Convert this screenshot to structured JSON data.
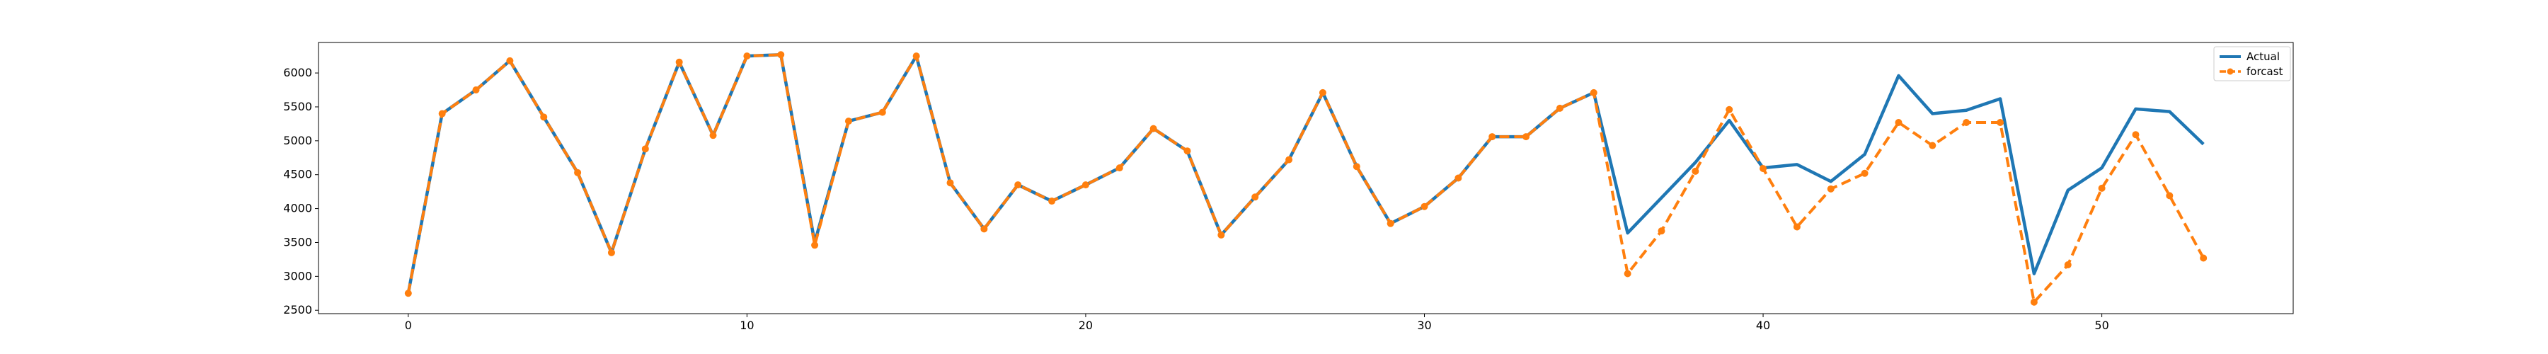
{
  "chart_data": {
    "type": "line",
    "title": "",
    "xlabel": "",
    "ylabel": "",
    "xlim": [
      -2.65,
      55.65
    ],
    "ylim": [
      2450,
      6450
    ],
    "xticks": [
      0,
      10,
      20,
      30,
      40,
      50
    ],
    "yticks": [
      2500,
      3000,
      3500,
      4000,
      4500,
      5000,
      5500,
      6000
    ],
    "grid": false,
    "legend_position": "top-right",
    "series": [
      {
        "name": "Actual",
        "color": "#1f77b4",
        "style": "solid",
        "marker": "none",
        "x": [
          0,
          1,
          2,
          3,
          4,
          5,
          6,
          7,
          8,
          9,
          10,
          11,
          12,
          13,
          14,
          15,
          16,
          17,
          18,
          19,
          20,
          21,
          22,
          23,
          24,
          25,
          26,
          27,
          28,
          29,
          30,
          31,
          32,
          33,
          34,
          35,
          36,
          37,
          38,
          39,
          40,
          41,
          42,
          43,
          44,
          45,
          46,
          47,
          48,
          49,
          50,
          51,
          52,
          53
        ],
        "values": [
          2750,
          5400,
          5750,
          6180,
          5350,
          4530,
          3350,
          4880,
          6160,
          5080,
          6250,
          6270,
          3500,
          5290,
          5420,
          6250,
          4380,
          3700,
          4350,
          4110,
          4350,
          4600,
          5180,
          4850,
          3610,
          4170,
          4720,
          5710,
          4620,
          3780,
          4030,
          4450,
          5060,
          5060,
          5480,
          5710,
          3640,
          4160,
          4680,
          5300,
          4600,
          4650,
          4400,
          4800,
          5960,
          5400,
          5450,
          5620,
          3040,
          4270,
          4600,
          5470,
          5430,
          4950
        ]
      },
      {
        "name": "forcast",
        "color": "#ff7f0e",
        "style": "dashed",
        "marker": "circle",
        "x": [
          0,
          1,
          2,
          3,
          4,
          5,
          6,
          7,
          8,
          9,
          10,
          11,
          12,
          13,
          14,
          15,
          16,
          17,
          18,
          19,
          20,
          21,
          22,
          23,
          24,
          25,
          26,
          27,
          28,
          29,
          30,
          31,
          32,
          33,
          34,
          35,
          36,
          37,
          38,
          39,
          40,
          41,
          42,
          43,
          44,
          45,
          46,
          47,
          48,
          49,
          50,
          51,
          52,
          53
        ],
        "values": [
          2750,
          5400,
          5750,
          6180,
          5350,
          4530,
          3350,
          4880,
          6160,
          5080,
          6250,
          6270,
          3460,
          5290,
          5420,
          6250,
          4380,
          3700,
          4350,
          4110,
          4350,
          4600,
          5180,
          4850,
          3610,
          4170,
          4720,
          5710,
          4620,
          3780,
          4030,
          4450,
          5060,
          5060,
          5480,
          5710,
          3040,
          3670,
          4550,
          5460,
          4590,
          3730,
          4290,
          4520,
          5270,
          4930,
          5270,
          5270,
          2620,
          3170,
          4300,
          5090,
          4190,
          3270
        ]
      }
    ]
  }
}
